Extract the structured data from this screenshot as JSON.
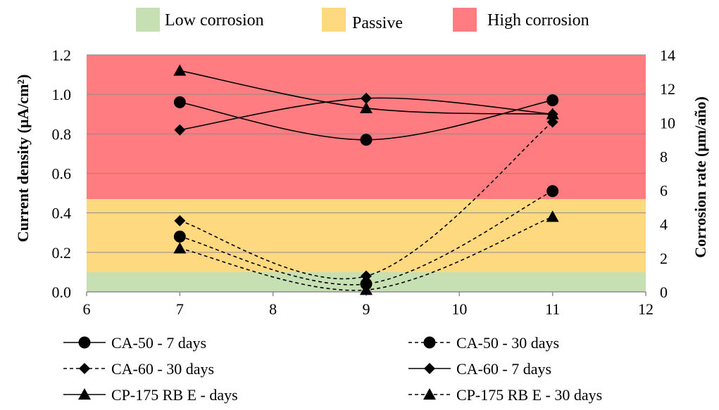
{
  "chart_data": {
    "type": "line",
    "title": "",
    "xlabel": "",
    "ylabel": "Current density (μA/cm²)",
    "y2label": "Corrosion rate (μm/año)",
    "xlim": [
      6,
      12
    ],
    "ylim": [
      0.0,
      1.2
    ],
    "y2lim": [
      0,
      14
    ],
    "x_ticks": [
      "6",
      "7",
      "8",
      "9",
      "10",
      "11",
      "12"
    ],
    "y_ticks": [
      "0.0",
      "0.2",
      "0.4",
      "0.6",
      "0.8",
      "1.0",
      "1.2"
    ],
    "y2_ticks": [
      "0",
      "2",
      "4",
      "6",
      "8",
      "10",
      "12",
      "14"
    ],
    "grid": true,
    "zones": [
      {
        "label": "Low corrosion",
        "from": 0.0,
        "to": 0.1,
        "color": "#c6e0b4"
      },
      {
        "label": "Passive",
        "from": 0.1,
        "to": 0.47,
        "color": "#ffd97f"
      },
      {
        "label": "High corrosion",
        "from": 0.47,
        "to": 1.2,
        "color": "#ff7c80"
      }
    ],
    "series": [
      {
        "name": "CA-50 - 7 days",
        "marker": "circle",
        "dash": false,
        "x": [
          7,
          9,
          11
        ],
        "values": [
          0.96,
          0.77,
          0.97
        ]
      },
      {
        "name": "CA-50 - 30 days",
        "marker": "circle",
        "dash": true,
        "x": [
          7,
          9,
          11
        ],
        "values": [
          0.28,
          0.04,
          0.51
        ]
      },
      {
        "name": "CA-60 - 30 days",
        "marker": "diamond",
        "dash": true,
        "x": [
          7,
          9,
          11
        ],
        "values": [
          0.36,
          0.08,
          0.86
        ]
      },
      {
        "name": "CA-60 - 7 days",
        "marker": "diamond",
        "dash": false,
        "x": [
          7,
          9,
          11
        ],
        "values": [
          0.82,
          0.98,
          0.9
        ]
      },
      {
        "name": "CP-175 RB E - days",
        "marker": "triangle",
        "dash": false,
        "x": [
          7,
          9,
          11
        ],
        "values": [
          1.12,
          0.93,
          0.9
        ]
      },
      {
        "name": "CP-175 RB E - 30 days",
        "marker": "triangle",
        "dash": true,
        "x": [
          7,
          9,
          11
        ],
        "values": [
          0.22,
          0.01,
          0.38
        ]
      }
    ],
    "legend_order": [
      0,
      1,
      2,
      3,
      4,
      5
    ]
  }
}
